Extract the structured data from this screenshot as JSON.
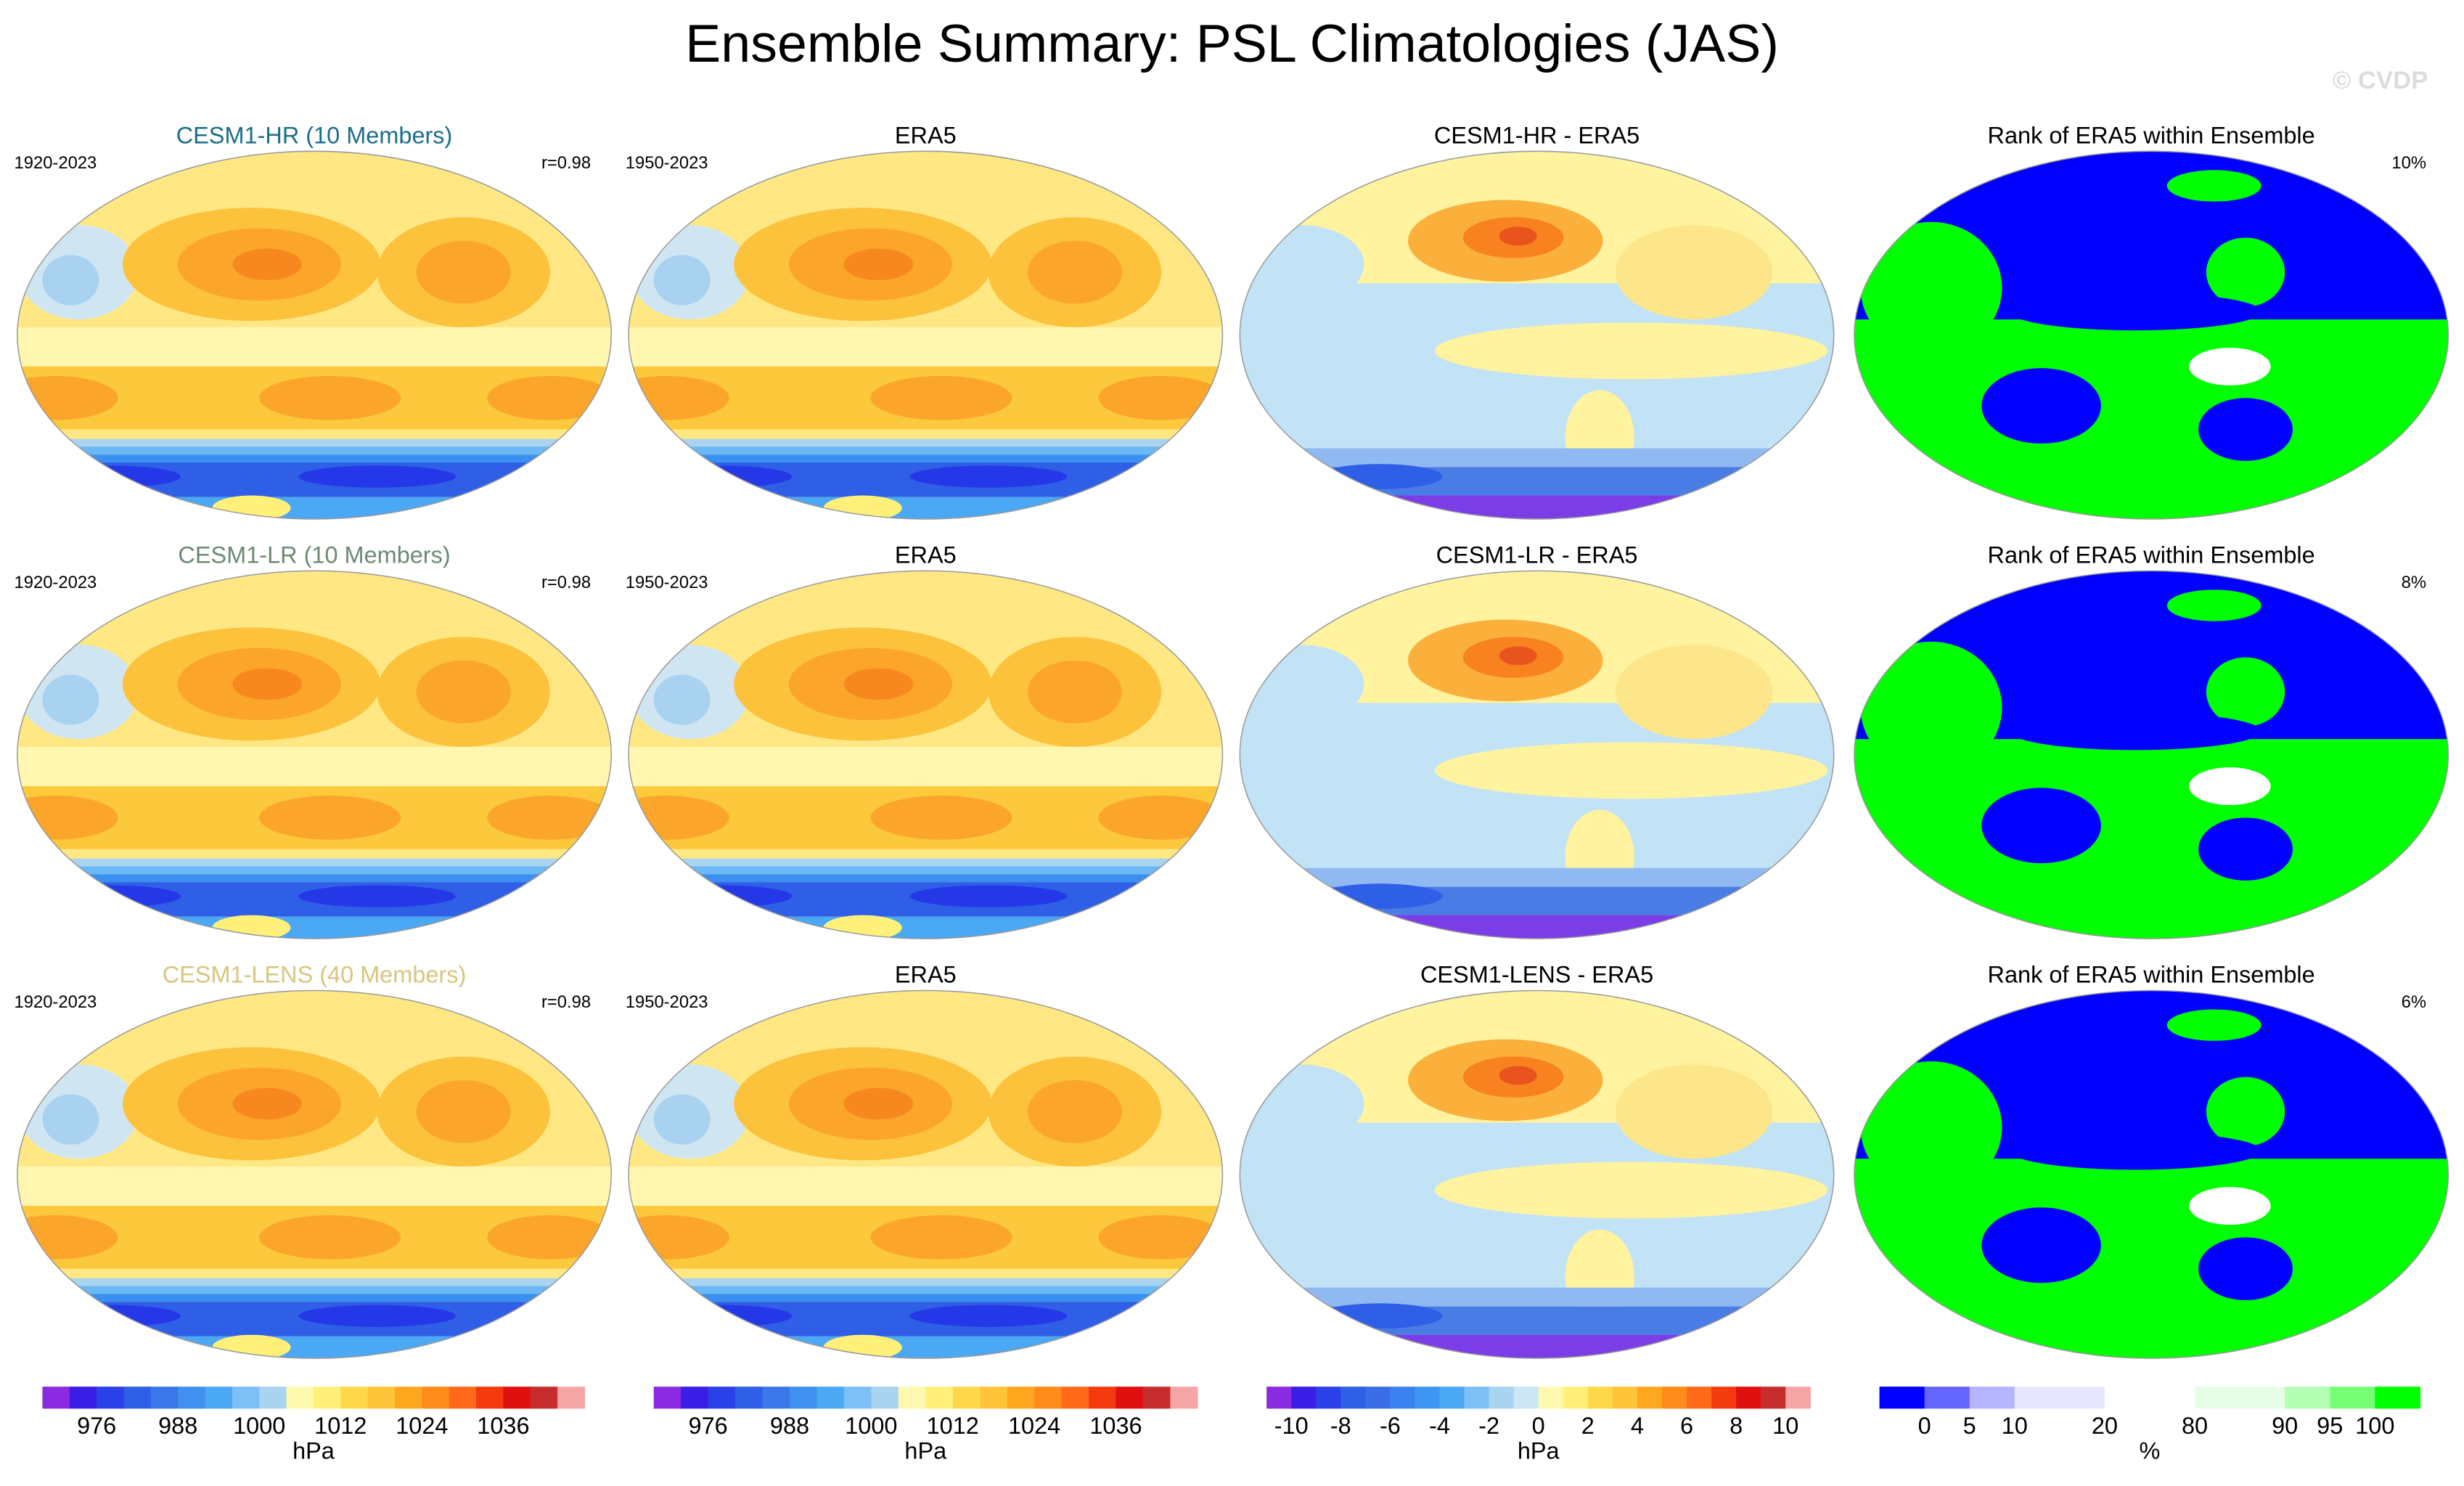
{
  "title": "Ensemble Summary: PSL Climatologies (JAS)",
  "watermark": "© CVDP",
  "rows": [
    {
      "panels": [
        {
          "title": "CESM1-HR (10 Members)",
          "period": "1920-2023",
          "stat": "r=0.98",
          "title_color": "#1a6e8a"
        },
        {
          "title": "ERA5",
          "period": "1950-2023"
        },
        {
          "title": "CESM1-HR - ERA5"
        },
        {
          "title": "Rank of ERA5 within Ensemble",
          "stat": "10%"
        }
      ]
    },
    {
      "panels": [
        {
          "title": "CESM1-LR (10 Members)",
          "period": "1920-2023",
          "stat": "r=0.98",
          "title_color": "#6b8a72"
        },
        {
          "title": "ERA5",
          "period": "1950-2023"
        },
        {
          "title": "CESM1-LR - ERA5"
        },
        {
          "title": "Rank of ERA5 within Ensemble",
          "stat": "8%"
        }
      ]
    },
    {
      "panels": [
        {
          "title": "CESM1-LENS (40 Members)",
          "period": "1920-2023",
          "stat": "r=0.98",
          "title_color": "#d8c57e"
        },
        {
          "title": "ERA5",
          "period": "1950-2023"
        },
        {
          "title": "CESM1-LENS - ERA5"
        },
        {
          "title": "Rank of ERA5 within Ensemble",
          "stat": "6%"
        }
      ]
    }
  ],
  "colorbars": [
    {
      "colors": [
        "#8a2be2",
        "#3a1ee6",
        "#2a40e8",
        "#2f5fe6",
        "#3a78ea",
        "#3f90f0",
        "#4aa8f5",
        "#7cc0f5",
        "#a8d4f0",
        "#fff9b0",
        "#fff07a",
        "#ffd84a",
        "#ffc43a",
        "#ffa81f",
        "#ff8c1a",
        "#ff6a1a",
        "#f53a10",
        "#e01010",
        "#c82d2d",
        "#f5a5a5"
      ],
      "labels": [
        976,
        988,
        1000,
        1012,
        1024,
        1036
      ],
      "unit": "hPa"
    },
    {
      "colors": [
        "#8a2be2",
        "#3a1ee6",
        "#2a40e8",
        "#2f5fe6",
        "#3a78ea",
        "#3f90f0",
        "#4aa8f5",
        "#7cc0f5",
        "#a8d4f0",
        "#fff9b0",
        "#fff07a",
        "#ffd84a",
        "#ffc43a",
        "#ffa81f",
        "#ff8c1a",
        "#ff6a1a",
        "#f53a10",
        "#e01010",
        "#c82d2d",
        "#f5a5a5"
      ],
      "labels": [
        976,
        988,
        1000,
        1012,
        1024,
        1036
      ],
      "unit": "hPa"
    },
    {
      "colors": [
        "#8a2be2",
        "#3a1ee6",
        "#2a40e8",
        "#2f5fe6",
        "#3a6ee8",
        "#3a82f0",
        "#3f96f2",
        "#4aa8f5",
        "#7cc0f5",
        "#a8d4f0",
        "#cde6f5",
        "#fff9b0",
        "#fff07a",
        "#ffd84a",
        "#ffc43a",
        "#ffa81f",
        "#ff8c1a",
        "#ff6a1a",
        "#f53a10",
        "#e01010",
        "#c82d2d",
        "#f5a5a5"
      ],
      "labels": [
        -10,
        -8,
        -6,
        -4,
        -2,
        0,
        2,
        4,
        6,
        8,
        10
      ],
      "unit": "hPa"
    },
    {
      "colors": [
        "#0000ff",
        "#6464ff",
        "#b4b4ff",
        "#e6e6ff",
        "#e6e6ff",
        "#ffffff",
        "#ffffff",
        "#e6ffe6",
        "#e6ffe6",
        "#b4ffb4",
        "#78ff78",
        "#00ff00"
      ],
      "labels": [
        0,
        5,
        10,
        20,
        80,
        90,
        95,
        100
      ],
      "unit": "%"
    }
  ]
}
